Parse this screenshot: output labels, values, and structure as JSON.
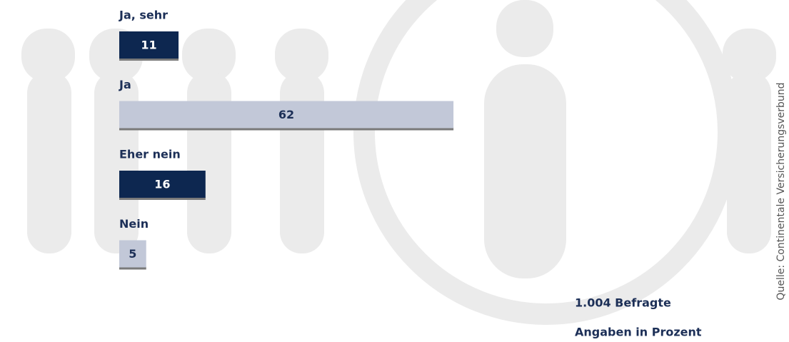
{
  "chart_data": {
    "type": "bar",
    "orientation": "horizontal",
    "categories": [
      "Ja, sehr",
      "Ja",
      "Eher nein",
      "Nein"
    ],
    "values": [
      11,
      62,
      16,
      5
    ],
    "colors": [
      "#0d2750",
      "#c2c8d8",
      "#0d2750",
      "#c2c8d8"
    ],
    "notes": [
      "1.004 Befragte",
      "Angaben in Prozent"
    ],
    "source": "Quelle: Continentale Versicherungsverbund"
  }
}
